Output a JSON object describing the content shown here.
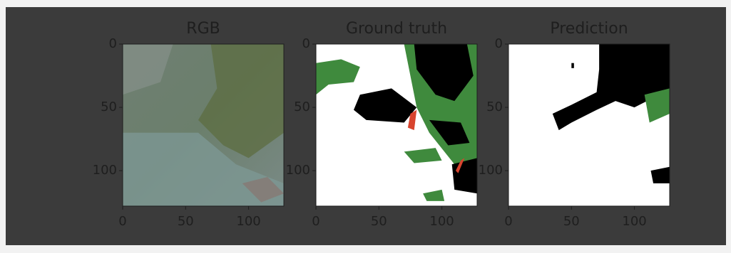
{
  "chart_data": [
    {
      "type": "image",
      "title": "RGB",
      "xlim": [
        0,
        128
      ],
      "ylim": [
        128,
        0
      ],
      "xticks": [
        0,
        50,
        100
      ],
      "yticks": [
        0,
        50,
        100
      ]
    },
    {
      "type": "image",
      "title": "Ground truth",
      "xlim": [
        0,
        128
      ],
      "ylim": [
        128,
        0
      ],
      "xticks": [
        0,
        50,
        100
      ],
      "yticks": [
        0,
        50,
        100
      ]
    },
    {
      "type": "image",
      "title": "Prediction",
      "xlim": [
        0,
        128
      ],
      "ylim": [
        128,
        0
      ],
      "xticks": [
        0,
        50,
        100
      ],
      "yticks": [
        0,
        50,
        100
      ]
    }
  ]
}
